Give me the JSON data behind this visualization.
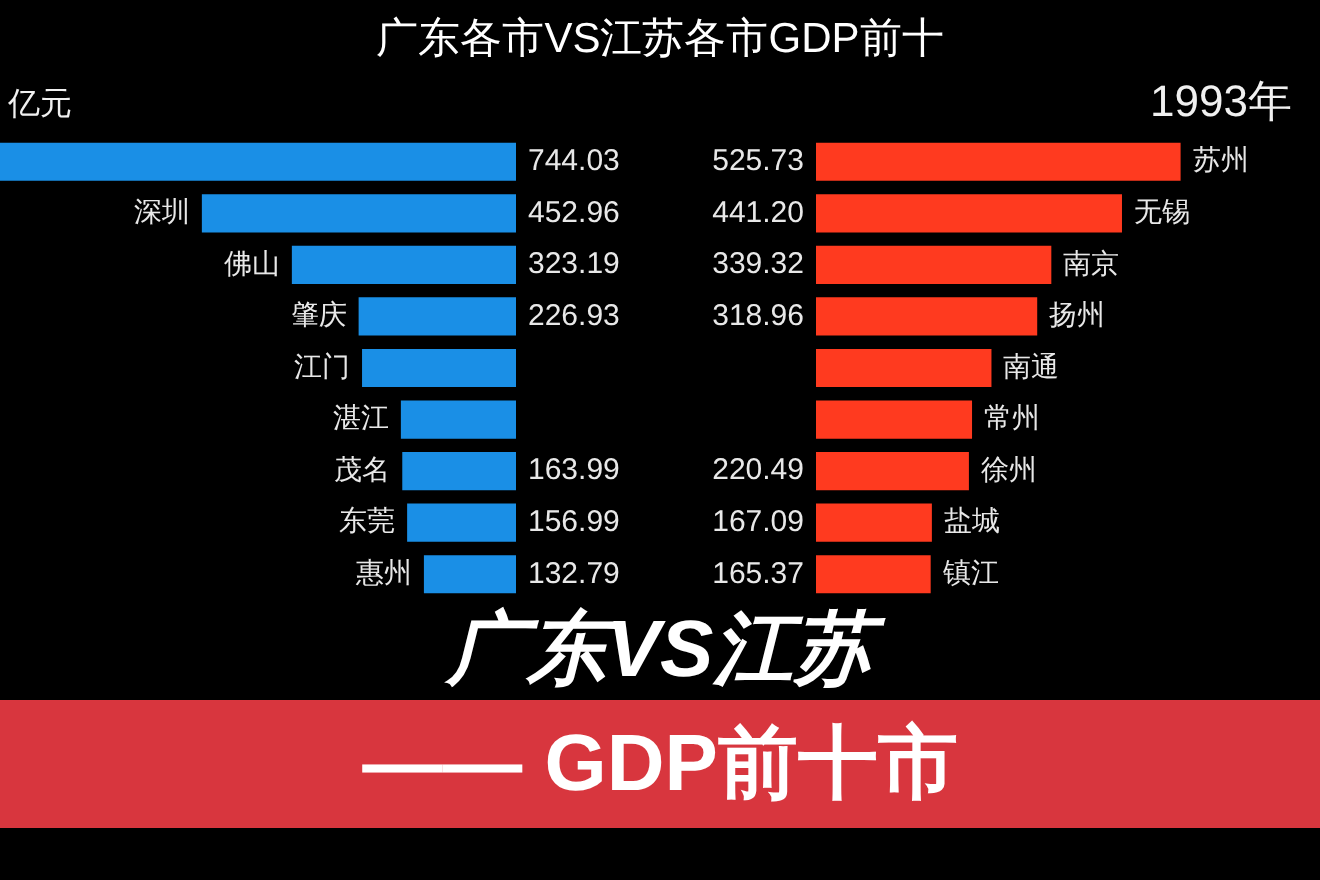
{
  "chart_data": [
    {
      "type": "other",
      "title": "广东各市VS江苏各市GDP前十"
    },
    {
      "type": "bar",
      "orientation": "horizontal",
      "xlabel": "亿元",
      "categories": [
        null,
        "深圳",
        "佛山",
        "肇庆",
        "江门",
        "湛江",
        "茂名",
        "东莞",
        "惠州"
      ],
      "values": [
        744.03,
        452.96,
        323.19,
        226.93,
        222,
        166,
        163.99,
        156.99,
        132.79
      ],
      "value_labels": [
        "744.03",
        "452.96",
        "323.19",
        "226.93",
        null,
        null,
        "163.99",
        "156.99",
        "132.79"
      ],
      "color": "#1a8fe6"
    },
    {
      "type": "bar",
      "orientation": "horizontal",
      "annotations": [
        "1993年"
      ],
      "categories": [
        "苏州",
        "无锡",
        "南京",
        "扬州",
        "南通",
        "常州",
        "徐州",
        "盐城",
        "镇江"
      ],
      "values": [
        525.73,
        441.2,
        339.32,
        318.96,
        253,
        225,
        220.49,
        167.09,
        165.37
      ],
      "value_labels": [
        "525.73",
        "441.20",
        "339.32",
        "318.96",
        null,
        null,
        "220.49",
        "167.09",
        "165.37"
      ],
      "color": "#ff3a1f"
    },
    {
      "type": "other",
      "annotations": [
        "广东VS江苏",
        "—— GDP前十市"
      ]
    }
  ]
}
